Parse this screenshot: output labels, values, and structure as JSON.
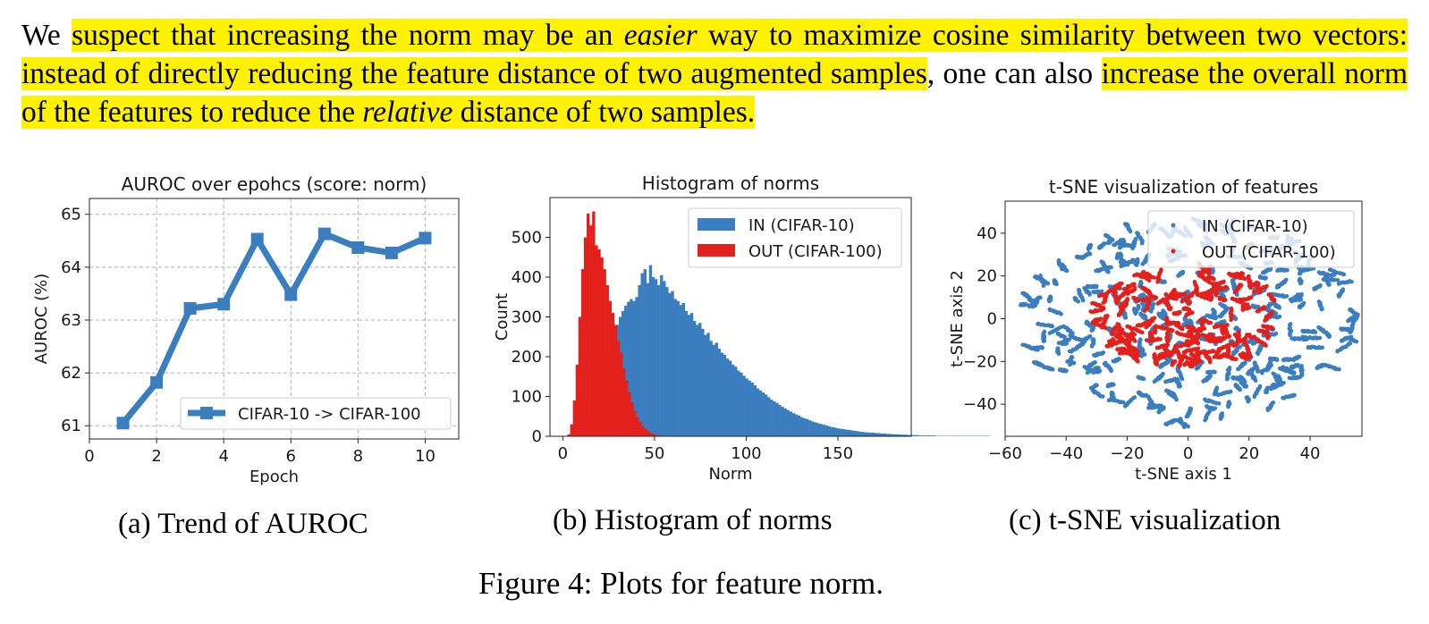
{
  "paragraph": {
    "lead": "We",
    "hl1": "suspect that increasing the norm may be an",
    "em1": "easier",
    "hl2": "way to maximize cosine similarity between two vectors: instead of directly reducing the feature distance of two augmented samples",
    "plain": ", one can also",
    "hl3": "increase the overall norm of the features to reduce the",
    "em2": "relative",
    "hl4": "distance of two samples."
  },
  "captions": {
    "a": "(a) Trend of AUROC",
    "b": "(b) Histogram of norms",
    "c": "(c) t-SNE visualization",
    "figure": "Figure 4: Plots for feature norm."
  },
  "colors": {
    "highlight": "#fff200",
    "in": "#3a7ebf",
    "out": "#e3211c"
  },
  "chart_data": [
    {
      "type": "line",
      "title": "AUROC over epohcs (score: norm)",
      "xlabel": "Epoch",
      "ylabel": "AUROC (%)",
      "xlim": [
        0,
        11
      ],
      "ylim": [
        60.75,
        65.3
      ],
      "xticks": [
        0,
        2,
        4,
        6,
        8,
        10
      ],
      "yticks": [
        61,
        62,
        63,
        64,
        65
      ],
      "grid": true,
      "legend": "lower right",
      "series": [
        {
          "name": "CIFAR-10 -> CIFAR-100",
          "color": "#3a7ebf",
          "x": [
            1,
            2,
            3,
            4,
            5,
            6,
            7,
            8,
            9,
            10
          ],
          "y": [
            61.05,
            61.82,
            63.22,
            63.3,
            64.53,
            63.48,
            64.63,
            64.37,
            64.27,
            64.55
          ]
        }
      ]
    },
    {
      "type": "bar",
      "title": "Histogram of norms",
      "xlabel": "Norm",
      "ylabel": "Count",
      "xlim": [
        -7,
        190
      ],
      "ylim": [
        0,
        600
      ],
      "xticks": [
        0,
        50,
        100,
        150
      ],
      "yticks": [
        0,
        100,
        200,
        300,
        400,
        500
      ],
      "grid": false,
      "legend": "upper right",
      "bin_width": 1.5,
      "series": [
        {
          "name": "IN (CIFAR-10)",
          "color": "#3a7ebf",
          "x_start": 8,
          "values": [
            2,
            5,
            10,
            20,
            35,
            55,
            80,
            105,
            130,
            160,
            190,
            215,
            240,
            260,
            280,
            300,
            315,
            328,
            338,
            345,
            340,
            350,
            380,
            410,
            420,
            385,
            430,
            400,
            395,
            380,
            405,
            390,
            375,
            360,
            365,
            345,
            340,
            330,
            335,
            315,
            305,
            310,
            290,
            280,
            285,
            270,
            255,
            260,
            240,
            230,
            235,
            220,
            210,
            205,
            195,
            190,
            180,
            175,
            165,
            160,
            152,
            145,
            140,
            135,
            128,
            120,
            115,
            110,
            105,
            98,
            92,
            88,
            84,
            79,
            74,
            70,
            66,
            62,
            58,
            55,
            52,
            48,
            45,
            43,
            40,
            37,
            35,
            33,
            31,
            29,
            27,
            25,
            23,
            22,
            20,
            19,
            18,
            17,
            16,
            15,
            14,
            13,
            12,
            11,
            10,
            10,
            9,
            9,
            8,
            8,
            7,
            7,
            6,
            6,
            5,
            5,
            5,
            4,
            4,
            4,
            3,
            3,
            3,
            3,
            2,
            2,
            2,
            2,
            2,
            2,
            1,
            1,
            1,
            1,
            1,
            1,
            1,
            1,
            1,
            1,
            1,
            1,
            1,
            1,
            1,
            1,
            1,
            1,
            1,
            1
          ]
        },
        {
          "name": "OUT (CIFAR-100)",
          "color": "#e3211c",
          "x_start": 2.5,
          "values": [
            5,
            30,
            90,
            180,
            300,
            420,
            500,
            560,
            530,
            565,
            480,
            470,
            450,
            420,
            380,
            340,
            310,
            280,
            240,
            210,
            170,
            140,
            110,
            85,
            65,
            48,
            35,
            25,
            18,
            12,
            8,
            5,
            3,
            2,
            1
          ]
        }
      ]
    },
    {
      "type": "scatter",
      "title": "t-SNE visualization of features",
      "xlabel": "t-SNE axis 1",
      "ylabel": "t-SNE axis 2",
      "xlim": [
        -60,
        57
      ],
      "ylim": [
        -55,
        55
      ],
      "xticks": [
        -60,
        -40,
        -20,
        0,
        20,
        40
      ],
      "yticks": [
        -40,
        -20,
        0,
        20,
        40
      ],
      "grid": false,
      "legend": "upper right",
      "series": [
        {
          "name": "IN (CIFAR-10)",
          "color": "#3a7ebf"
        },
        {
          "name": "OUT (CIFAR-100)",
          "color": "#e3211c"
        }
      ]
    }
  ]
}
